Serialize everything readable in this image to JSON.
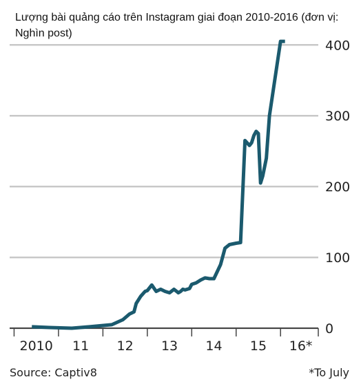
{
  "chart_data": {
    "type": "line",
    "title": "Lượng bài quảng cáo trên Instagram giai đoạn 2010-2016 (đơn vị: Nghìn post)",
    "xlabel": "",
    "ylabel": "",
    "x_tick_labels": [
      "2010",
      "11",
      "12",
      "13",
      "14",
      "15",
      "16*"
    ],
    "y_ticks": [
      0,
      100,
      200,
      300,
      400
    ],
    "ylim": [
      0,
      410
    ],
    "xlim": [
      2009.9,
      2016.85
    ],
    "grid": true,
    "color": "#1b5a6e",
    "series": [
      {
        "x": [
          2010.4,
          2010.8,
          2011.3,
          2011.7,
          2012.2,
          2012.45,
          2012.6,
          2012.7,
          2012.75,
          2012.85,
          2012.95,
          2013.0,
          2013.1,
          2013.2,
          2013.3,
          2013.4,
          2013.5,
          2013.6,
          2013.7,
          2013.75,
          2013.8,
          2013.85,
          2013.9,
          2013.95,
          2014.0,
          2014.1,
          2014.2,
          2014.3,
          2014.4,
          2014.5,
          2014.65,
          2014.75,
          2014.85,
          2015.0,
          2015.1,
          2015.2,
          2015.3,
          2015.35,
          2015.4,
          2015.45,
          2015.5,
          2015.55,
          2015.6,
          2015.68,
          2015.75,
          2016.0,
          2016.1
        ],
        "y": [
          2,
          1,
          0,
          2,
          5,
          12,
          20,
          23,
          35,
          45,
          52,
          53,
          61,
          52,
          55,
          52,
          50,
          55,
          50,
          52,
          55,
          54,
          55,
          56,
          62,
          64,
          68,
          71,
          70,
          70,
          90,
          113,
          118,
          120,
          121,
          265,
          258,
          262,
          272,
          278,
          275,
          205,
          215,
          240,
          300,
          405,
          405
        ]
      }
    ],
    "source": "Source: Captiv8",
    "note": "*To July"
  }
}
